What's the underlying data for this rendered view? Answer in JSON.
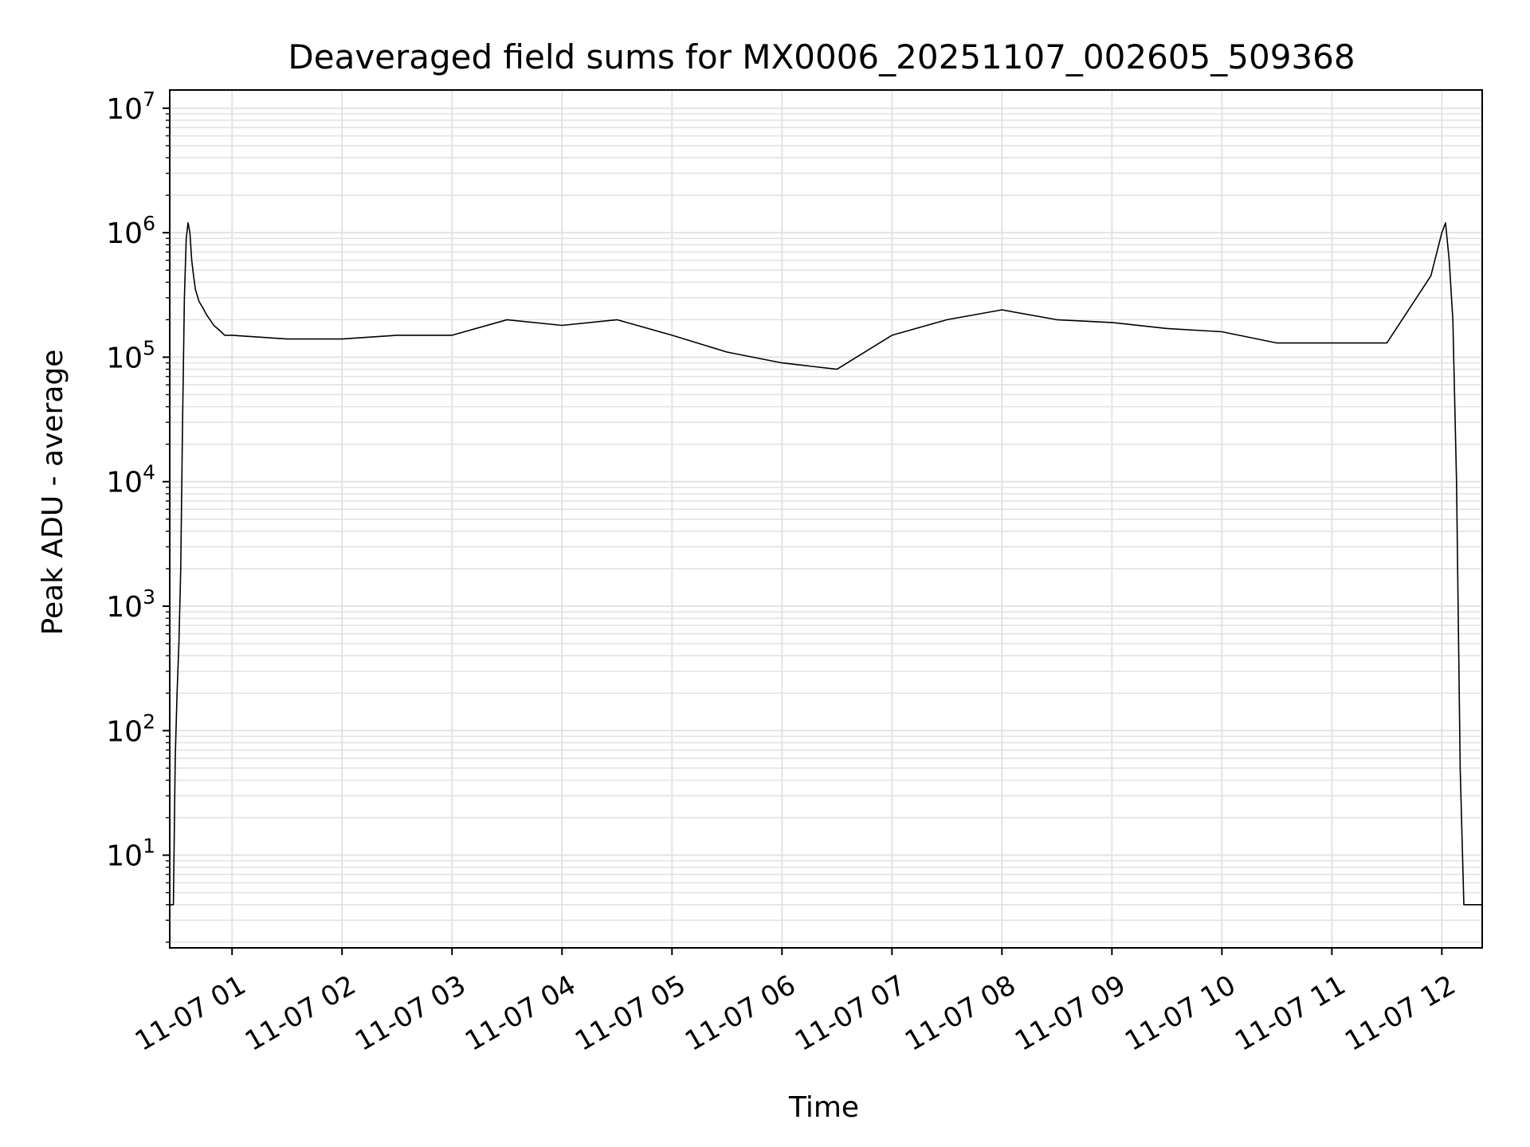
{
  "chart_data": {
    "type": "line",
    "title": "Deaveraged field sums for MX0006_20251107_002605_509368",
    "xlabel": "Time",
    "ylabel": "Peak ADU - average",
    "x_scale": "time",
    "y_scale": "log",
    "xlim": [
      "2025-11-07 00:26",
      "2025-11-07 12:22"
    ],
    "ylim": [
      1.8,
      14000000
    ],
    "x_ticks": [
      {
        "value": "2025-11-07 01:00",
        "label": "11-07 01"
      },
      {
        "value": "2025-11-07 02:00",
        "label": "11-07 02"
      },
      {
        "value": "2025-11-07 03:00",
        "label": "11-07 03"
      },
      {
        "value": "2025-11-07 04:00",
        "label": "11-07 04"
      },
      {
        "value": "2025-11-07 05:00",
        "label": "11-07 05"
      },
      {
        "value": "2025-11-07 06:00",
        "label": "11-07 06"
      },
      {
        "value": "2025-11-07 07:00",
        "label": "11-07 07"
      },
      {
        "value": "2025-11-07 08:00",
        "label": "11-07 08"
      },
      {
        "value": "2025-11-07 09:00",
        "label": "11-07 09"
      },
      {
        "value": "2025-11-07 10:00",
        "label": "11-07 10"
      },
      {
        "value": "2025-11-07 11:00",
        "label": "11-07 11"
      },
      {
        "value": "2025-11-07 12:00",
        "label": "11-07 12"
      }
    ],
    "y_ticks": [
      {
        "value": 10,
        "label": "10",
        "exp": "1"
      },
      {
        "value": 100,
        "label": "10",
        "exp": "2"
      },
      {
        "value": 1000,
        "label": "10",
        "exp": "3"
      },
      {
        "value": 10000,
        "label": "10",
        "exp": "4"
      },
      {
        "value": 100000,
        "label": "10",
        "exp": "5"
      },
      {
        "value": 1000000,
        "label": "10",
        "exp": "6"
      },
      {
        "value": 10000000,
        "label": "10",
        "exp": "7"
      }
    ],
    "grid": true,
    "line_color": "#000000",
    "series": [
      {
        "x": [
          "2025-11-07 00:26",
          "2025-11-07 00:28",
          "2025-11-07 00:29",
          "2025-11-07 00:30",
          "2025-11-07 00:31",
          "2025-11-07 00:32",
          "2025-11-07 00:33",
          "2025-11-07 00:34",
          "2025-11-07 00:35",
          "2025-11-07 00:36",
          "2025-11-07 00:37",
          "2025-11-07 00:38",
          "2025-11-07 00:39",
          "2025-11-07 00:40",
          "2025-11-07 00:42",
          "2025-11-07 00:44",
          "2025-11-07 00:46",
          "2025-11-07 00:48",
          "2025-11-07 00:50",
          "2025-11-07 00:52",
          "2025-11-07 00:54",
          "2025-11-07 00:56",
          "2025-11-07 01:00",
          "2025-11-07 01:30",
          "2025-11-07 02:00",
          "2025-11-07 02:30",
          "2025-11-07 03:00",
          "2025-11-07 03:30",
          "2025-11-07 04:00",
          "2025-11-07 04:30",
          "2025-11-07 05:00",
          "2025-11-07 05:30",
          "2025-11-07 06:00",
          "2025-11-07 06:30",
          "2025-11-07 07:00",
          "2025-11-07 07:30",
          "2025-11-07 08:00",
          "2025-11-07 08:30",
          "2025-11-07 09:00",
          "2025-11-07 09:30",
          "2025-11-07 10:00",
          "2025-11-07 10:30",
          "2025-11-07 11:00",
          "2025-11-07 11:30",
          "2025-11-07 11:54",
          "2025-11-07 12:00",
          "2025-11-07 12:02",
          "2025-11-07 12:04",
          "2025-11-07 12:06",
          "2025-11-07 12:08",
          "2025-11-07 12:10",
          "2025-11-07 12:12",
          "2025-11-07 12:14",
          "2025-11-07 12:22"
        ],
        "y": [
          4,
          4,
          60,
          200,
          500,
          2000,
          30000,
          300000,
          900000,
          1200000,
          1000000,
          600000,
          450000,
          350000,
          280000,
          250000,
          220000,
          200000,
          180000,
          170000,
          160000,
          150000,
          150000,
          140000,
          140000,
          150000,
          150000,
          200000,
          180000,
          200000,
          150000,
          110000,
          90000,
          80000,
          150000,
          200000,
          240000,
          200000,
          190000,
          170000,
          160000,
          130000,
          130000,
          130000,
          450000,
          1000000,
          1200000,
          600000,
          200000,
          10000,
          50,
          4,
          4,
          4
        ]
      }
    ]
  }
}
